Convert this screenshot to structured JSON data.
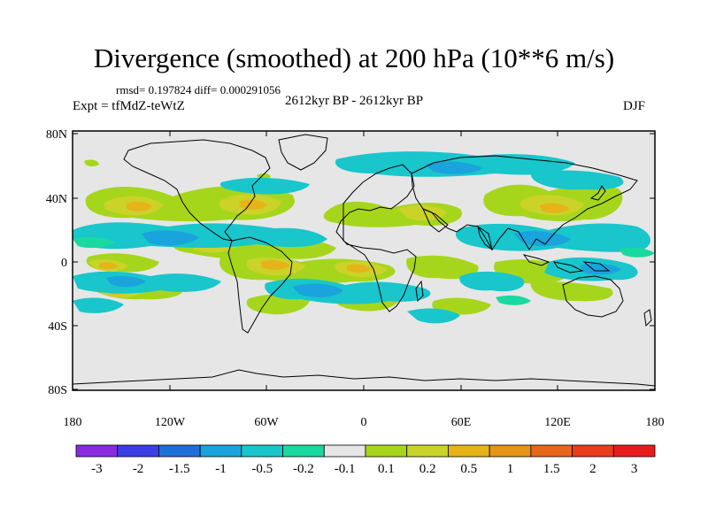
{
  "title": "Divergence (smoothed) at 200 hPa (10**6 m/s)",
  "stats": "rmsd= 0.197824 diff= 0.000291056",
  "period": "2612kyr BP - 2612kyr BP",
  "experiment": "Expt = tfMdZ-teWtZ",
  "season": "DJF",
  "lat_labels": [
    "80N",
    "40N",
    "0",
    "40S",
    "80S"
  ],
  "lon_labels": [
    "180",
    "120W",
    "60W",
    "0",
    "60E",
    "120E",
    "180"
  ],
  "colorbar": {
    "colors": [
      "#8a2be2",
      "#3d3de6",
      "#1f6fd8",
      "#1aa3dc",
      "#18c6cc",
      "#1ad9a0",
      "#e6e6e6",
      "#a6d61c",
      "#cbd22a",
      "#e6b319",
      "#e6931a",
      "#e8661b",
      "#e83c1a",
      "#e81c1c"
    ],
    "labels": [
      "-3",
      "-2",
      "-1.5",
      "-1",
      "-0.5",
      "-0.2",
      "-0.1",
      "0.1",
      "0.2",
      "0.5",
      "1",
      "1.5",
      "2",
      "3"
    ]
  }
}
